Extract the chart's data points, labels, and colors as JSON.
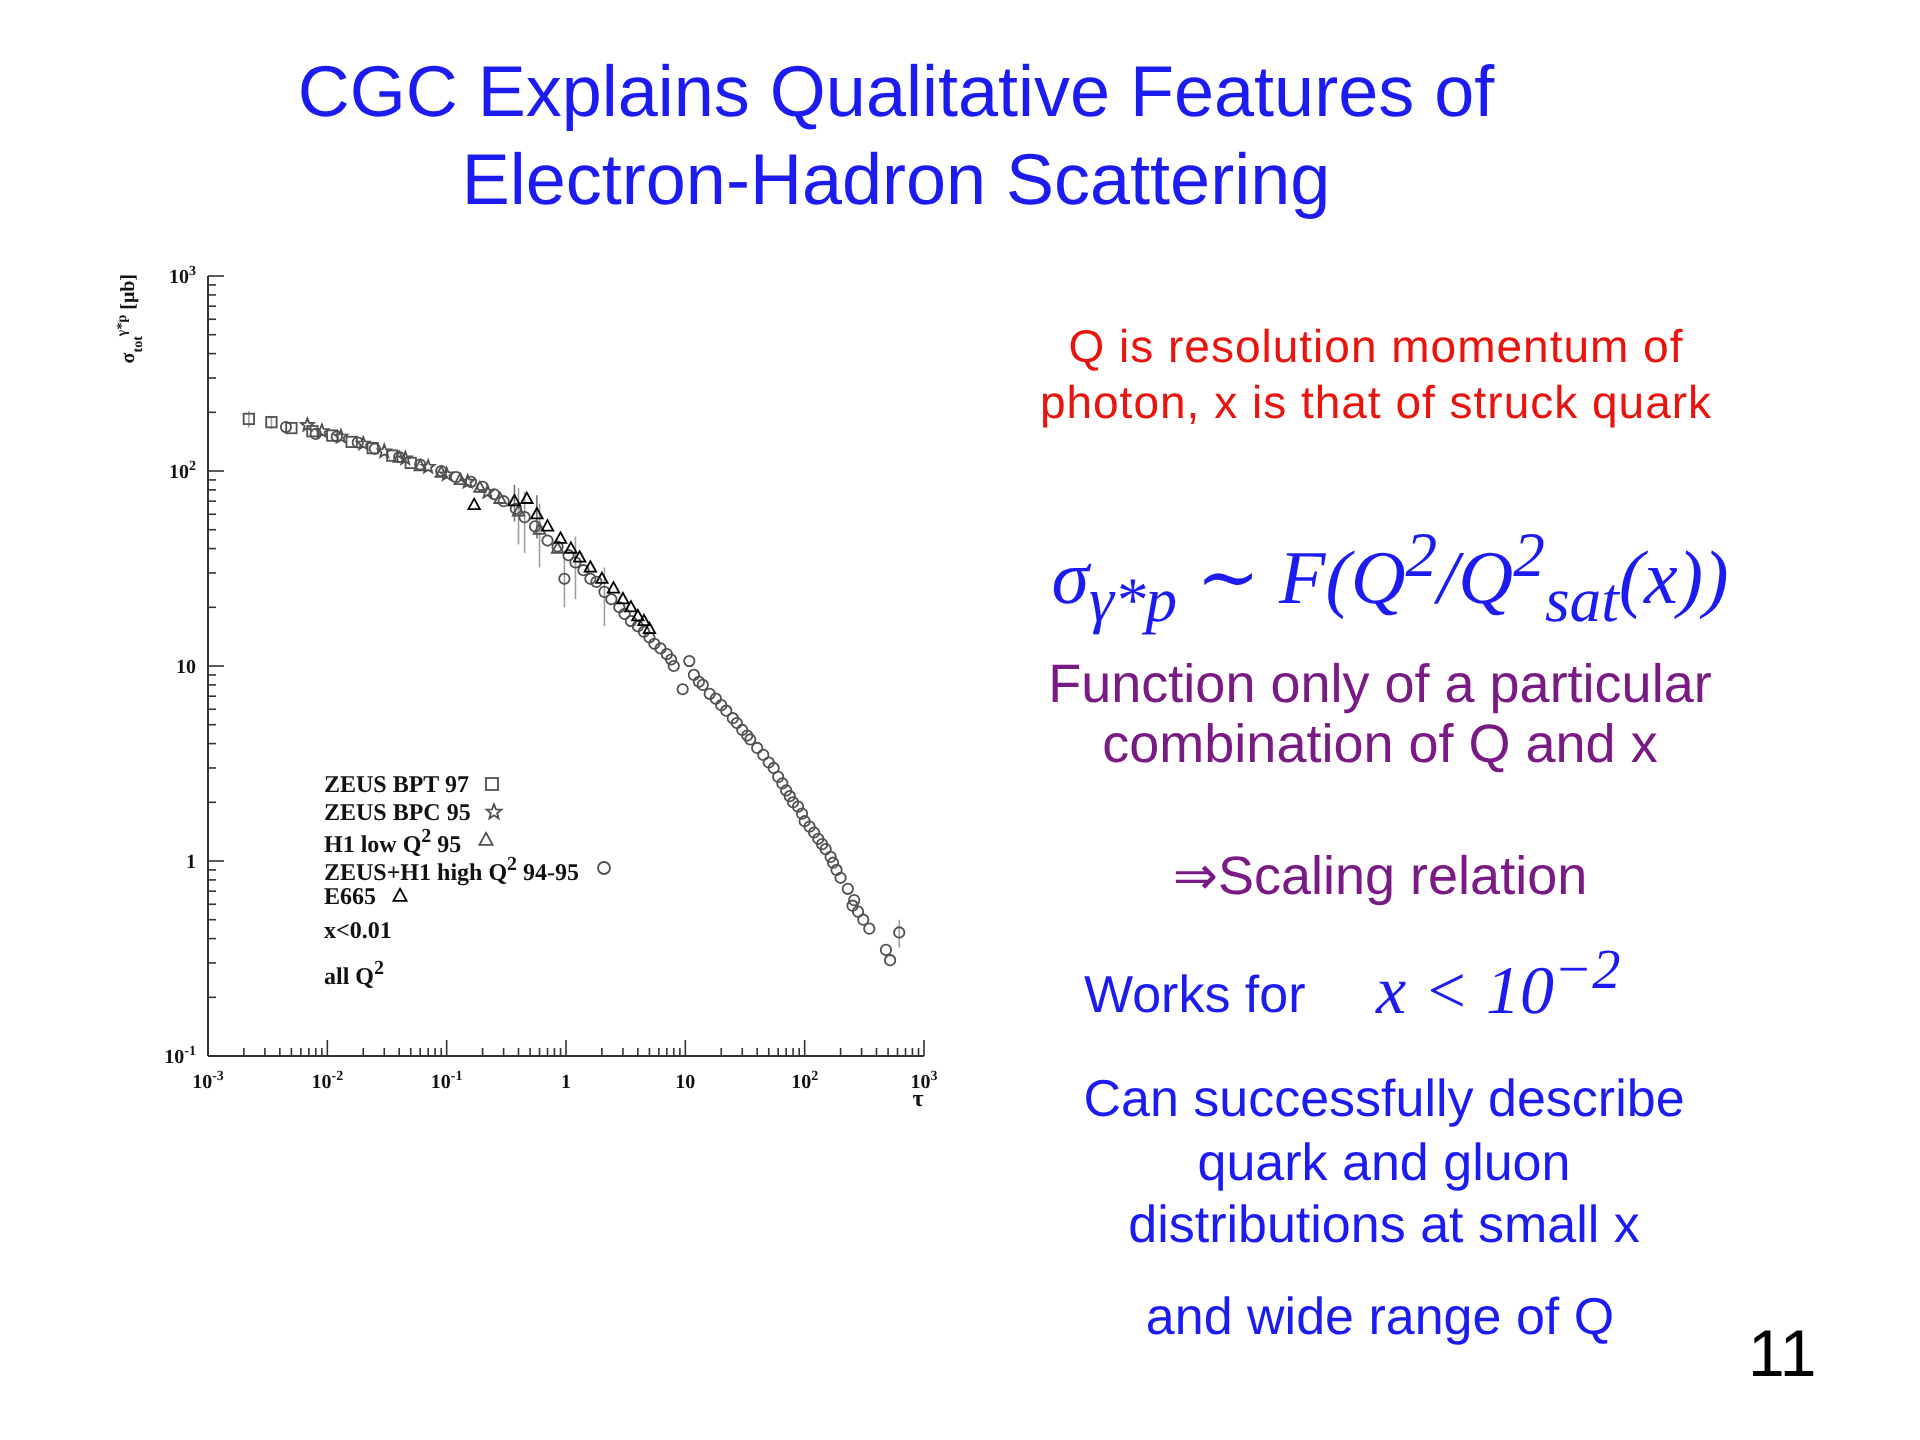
{
  "chart_data": {
    "type": "scatter",
    "title": "CGC Explains Qualitative Features of Electron-Hadron Scattering",
    "xlabel": "τ",
    "ylabel": "σ$_{tot}$$^{γ*p}$ [μb]",
    "log": "xy",
    "legend": "bottom left",
    "xlim": [
      0.001,
      1000
    ],
    "xticks": [
      {
        "value": 0.001,
        "label": "10$^{-3}$"
      },
      {
        "value": 0.002,
        "label": null
      },
      {
        "value": 0.003,
        "label": null
      },
      {
        "value": 0.004,
        "label": null
      },
      {
        "value": 0.005,
        "label": null
      },
      {
        "value": 0.006,
        "label": null
      },
      {
        "value": 0.007,
        "label": null
      },
      {
        "value": 0.008,
        "label": null
      },
      {
        "value": 0.009,
        "label": null
      },
      {
        "value": 0.01,
        "label": "10$^{-2}$"
      },
      {
        "value": 0.02,
        "label": null
      },
      {
        "value": 0.03,
        "label": null
      },
      {
        "value": 0.04,
        "label": null
      },
      {
        "value": 0.05,
        "label": null
      },
      {
        "value": 0.06,
        "label": null
      },
      {
        "value": 0.07,
        "label": null
      },
      {
        "value": 0.08,
        "label": null
      },
      {
        "value": 0.09,
        "label": null
      },
      {
        "value": 0.1,
        "label": "10$^{-1}$"
      },
      {
        "value": 0.2,
        "label": null
      },
      {
        "value": 0.3,
        "label": null
      },
      {
        "value": 0.4,
        "label": null
      },
      {
        "value": 0.5,
        "label": null
      },
      {
        "value": 0.6,
        "label": null
      },
      {
        "value": 0.7,
        "label": null
      },
      {
        "value": 0.8,
        "label": null
      },
      {
        "value": 0.9,
        "label": null
      },
      1,
      {
        "value": 2,
        "label": null
      },
      {
        "value": 3,
        "label": null
      },
      {
        "value": 4,
        "label": null
      },
      {
        "value": 5,
        "label": null
      },
      {
        "value": 6,
        "label": null
      },
      {
        "value": 7,
        "label": null
      },
      {
        "value": 8,
        "label": null
      },
      {
        "value": 9,
        "label": null
      },
      10,
      {
        "value": 20,
        "label": null
      },
      {
        "value": 30,
        "label": null
      },
      {
        "value": 40,
        "label": null
      },
      {
        "value": 50,
        "label": null
      },
      {
        "value": 60,
        "label": null
      },
      {
        "value": 70,
        "label": null
      },
      {
        "value": 80,
        "label": null
      },
      {
        "value": 90,
        "label": null
      },
      {
        "value": 100,
        "label": "10$^{2}$"
      },
      {
        "value": 200,
        "label": null
      },
      {
        "value": 300,
        "label": null
      },
      {
        "value": 400,
        "label": null
      },
      {
        "value": 500,
        "label": null
      },
      {
        "value": 600,
        "label": null
      },
      {
        "value": 700,
        "label": null
      },
      {
        "value": 800,
        "label": null
      },
      {
        "value": 900,
        "label": null
      },
      {
        "value": 1000,
        "label": "10$^{3}$"
      }
    ],
    "ylim": [
      0.1,
      1000
    ],
    "yticks": [
      {
        "value": 0.1,
        "label": "10$^{-1}$"
      },
      {
        "value": 0.2,
        "label": null
      },
      {
        "value": 0.3,
        "label": null
      },
      {
        "value": 0.4,
        "label": null
      },
      {
        "value": 0.5,
        "label": null
      },
      {
        "value": 0.6,
        "label": null
      },
      {
        "value": 0.7,
        "label": null
      },
      {
        "value": 0.8,
        "label": null
      },
      {
        "value": 0.9,
        "label": null
      },
      1,
      {
        "value": 2,
        "label": null
      },
      {
        "value": 3,
        "label": null
      },
      {
        "value": 4,
        "label": null
      },
      {
        "value": 5,
        "label": null
      },
      {
        "value": 6,
        "label": null
      },
      {
        "value": 7,
        "label": null
      },
      {
        "value": 8,
        "label": null
      },
      {
        "value": 9,
        "label": null
      },
      10,
      {
        "value": 20,
        "label": null
      },
      {
        "value": 30,
        "label": null
      },
      {
        "value": 40,
        "label": null
      },
      {
        "value": 50,
        "label": null
      },
      {
        "value": 60,
        "label": null
      },
      {
        "value": 70,
        "label": null
      },
      {
        "value": 80,
        "label": null
      },
      {
        "value": 90,
        "label": null
      },
      {
        "value": 100,
        "label": "10$^{2}$"
      },
      {
        "value": 200,
        "label": null
      },
      {
        "value": 300,
        "label": null
      },
      {
        "value": 400,
        "label": null
      },
      {
        "value": 500,
        "label": null
      },
      {
        "value": 600,
        "label": null
      },
      {
        "value": 700,
        "label": null
      },
      {
        "value": 800,
        "label": null
      },
      {
        "value": 900,
        "label": null
      },
      {
        "value": 1000,
        "label": "10$^{3}$"
      }
    ],
    "series": [
      {
        "name": "ZEUS BPT 97",
        "marker": "square",
        "color": "#505050",
        "x": [
          0.0022,
          0.0034,
          0.005,
          0.0075,
          0.011,
          0.016,
          0.024,
          0.035,
          0.05
        ],
        "values": [
          185,
          178,
          166,
          160,
          152,
          141,
          131,
          120,
          110
        ],
        "errors": [
          18,
          14,
          null,
          null,
          null,
          null,
          null,
          null,
          null
        ]
      },
      {
        "name": "ZEUS BPC 95",
        "marker": "star",
        "color": "#505050",
        "x": [
          0.0068,
          0.009,
          0.013,
          0.02,
          0.03,
          0.045,
          0.07,
          0.1,
          0.15,
          0.22
        ],
        "values": [
          172,
          160,
          150,
          138,
          126,
          116,
          105,
          96,
          88,
          78
        ]
      },
      {
        "name": "H1 low Q$^{2}$ 95",
        "marker": "triangle",
        "color": "#505050",
        "x": [
          0.04,
          0.06,
          0.09,
          0.13,
          0.19,
          0.28,
          0.4,
          0.6,
          0.85
        ],
        "values": [
          117,
          106,
          98,
          90,
          82,
          72,
          62,
          50,
          40
        ],
        "errors": [
          null,
          null,
          null,
          null,
          null,
          null,
          20,
          18,
          null
        ]
      },
      {
        "name": "ZEUS+H1 high Q$^{2}$ 94-95",
        "marker": "circle",
        "color": "#505050",
        "x": [
          0.0045,
          0.008,
          0.012,
          0.018,
          0.025,
          0.04,
          0.06,
          0.09,
          0.12,
          0.16,
          0.2,
          0.25,
          0.3,
          0.38,
          0.45,
          0.55,
          0.7,
          0.85,
          0.97,
          1.05,
          1.2,
          1.4,
          1.6,
          1.8,
          2.1,
          2.4,
          2.8,
          3.1,
          3.5,
          4,
          4.5,
          5,
          5.5,
          6.2,
          7,
          7.6,
          8,
          9.5,
          10.8,
          11.8,
          13,
          14,
          16,
          18,
          20,
          22,
          25,
          27,
          30,
          33,
          35,
          40,
          45,
          50,
          55,
          60,
          65,
          70,
          75,
          80,
          88,
          95,
          100,
          110,
          120,
          130,
          140,
          150,
          165,
          173,
          185,
          200,
          230,
          252,
          260,
          280,
          310,
          348,
          480,
          520,
          620
        ],
        "values": [
          168,
          155,
          150,
          140,
          130,
          118,
          108,
          100,
          93,
          88,
          83,
          76,
          70,
          64,
          58,
          52,
          44,
          41,
          28,
          37,
          34,
          31,
          28,
          27,
          24,
          22,
          20,
          18.5,
          17,
          16,
          15,
          14,
          13,
          12.3,
          11.5,
          10.8,
          10,
          7.6,
          10.6,
          9,
          8.3,
          8,
          7.2,
          6.8,
          6.3,
          5.9,
          5.4,
          5.1,
          4.7,
          4.4,
          4.2,
          3.8,
          3.5,
          3.2,
          3,
          2.7,
          2.5,
          2.3,
          2.15,
          2,
          1.9,
          1.75,
          1.6,
          1.5,
          1.4,
          1.3,
          1.22,
          1.15,
          1.05,
          0.98,
          0.9,
          0.82,
          0.72,
          0.59,
          0.63,
          0.55,
          0.5,
          0.45,
          0.35,
          0.31,
          0.43
        ],
        "errors": [
          null,
          null,
          null,
          null,
          null,
          null,
          null,
          null,
          null,
          null,
          null,
          null,
          null,
          null,
          20,
          null,
          null,
          null,
          8,
          null,
          12,
          null,
          null,
          null,
          8,
          null,
          null,
          null,
          null,
          null,
          null,
          null,
          null,
          null,
          null,
          null,
          null,
          null,
          null,
          null,
          null,
          null,
          null,
          null,
          null,
          null,
          null,
          null,
          null,
          null,
          null,
          null,
          null,
          null,
          null,
          null,
          null,
          null,
          null,
          null,
          null,
          null,
          null,
          null,
          null,
          null,
          null,
          null,
          null,
          null,
          null,
          null,
          null,
          null,
          null,
          null,
          null,
          null,
          null,
          null,
          0.07
        ]
      },
      {
        "name": "E665",
        "marker": "triangle",
        "color": "#000000",
        "x": [
          0.17,
          0.37,
          0.47,
          0.57,
          0.7,
          0.9,
          1.1,
          1.3,
          1.6,
          2,
          2.5,
          3,
          3.5,
          4,
          4.5,
          5
        ],
        "values": [
          67,
          70,
          72,
          60,
          52,
          45,
          40,
          36,
          32,
          28,
          25,
          22,
          20,
          18,
          17,
          15.5
        ],
        "errors": [
          null,
          15,
          null,
          15,
          null,
          null,
          null,
          null,
          null,
          null,
          null,
          null,
          null,
          null,
          null,
          null
        ]
      }
    ],
    "annotations": [
      "x<0.01",
      "all Q$^{2}$",
      "Q is resolution momentum of photon, x is that of struck quark",
      "σ$_{γ*p}$ ∼ F(Q$^{2}$/Q$^{2}$$_{sat}$(x))",
      "Function only of a particular combination of Q and x",
      "⇒Scaling relation",
      "Works for",
      "x < 10$^{−2}$",
      "Can successfully describe quark and gluon distributions at small x",
      "and wide range of Q",
      "11"
    ]
  }
}
